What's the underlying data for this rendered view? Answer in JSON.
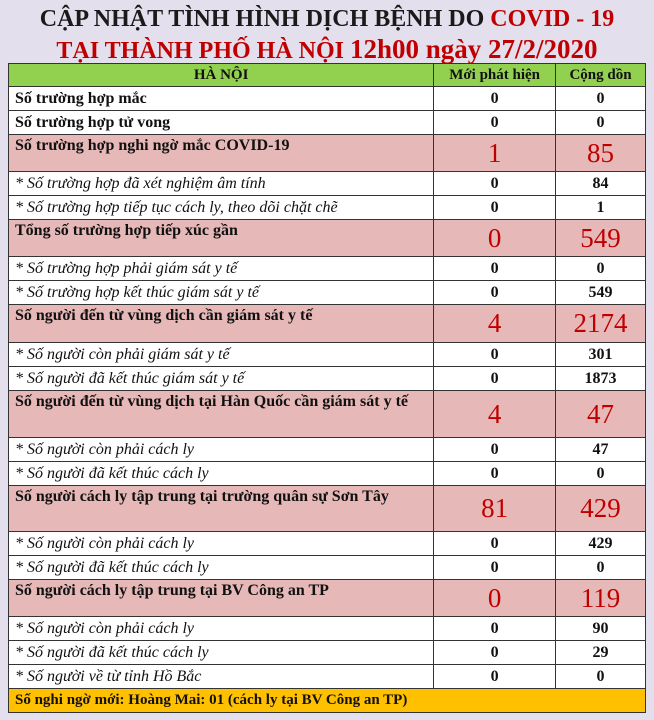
{
  "title": {
    "line1_main": "CẬP NHẬT TÌNH HÌNH DỊCH BỆNH DO ",
    "line1_red": "COVID - 19",
    "line2_main": "TẠI THÀNH PHỐ HÀ NỘI ",
    "line2_big": "12h00 ngày 27/2/2020"
  },
  "table": {
    "headers": [
      "HÀ NỘI",
      "Mới phát hiện",
      "Cộng dồn"
    ],
    "rows": [
      {
        "label": "Số trường hợp mắc",
        "new": "0",
        "total": "0",
        "type": "n"
      },
      {
        "label": "Số trường hợp tử vong",
        "new": "0",
        "total": "0",
        "type": "n"
      },
      {
        "label": "Số trường hợp nghi ngờ mắc COVID-19",
        "new": "1",
        "total": "85",
        "type": "h"
      },
      {
        "label": "* Số trường hợp đã xét nghiệm âm tính",
        "new": "0",
        "total": "84",
        "type": "sub"
      },
      {
        "label": "* Số trường hợp tiếp tục cách ly, theo dõi chặt chẽ",
        "new": "0",
        "total": "1",
        "type": "sub"
      },
      {
        "label": "Tổng số trường hợp tiếp xúc gần",
        "new": "0",
        "total": "549",
        "type": "h"
      },
      {
        "label": "* Số trường hợp phải giám sát y tế",
        "new": "0",
        "total": "0",
        "type": "sub"
      },
      {
        "label": "* Số trường hợp kết thúc giám sát y tế",
        "new": "0",
        "total": "549",
        "type": "sub"
      },
      {
        "label": "Số người đến từ vùng dịch cần giám sát y tế",
        "new": "4",
        "total": "2174",
        "type": "h"
      },
      {
        "label": "* Số người còn phải giám sát y tế",
        "new": "0",
        "total": "301",
        "type": "sub"
      },
      {
        "label": "* Số người đã kết thúc giám sát y tế",
        "new": "0",
        "total": "1873",
        "type": "sub"
      },
      {
        "label": "Số người đến từ vùng dịch tại Hàn Quốc cần giám sát y tế",
        "new": "4",
        "total": "47",
        "type": "h"
      },
      {
        "label": "* Số người còn phải cách ly",
        "new": "0",
        "total": "47",
        "type": "sub"
      },
      {
        "label": "* Số người đã kết thúc cách ly",
        "new": "0",
        "total": "0",
        "type": "sub"
      },
      {
        "label": "Số người cách ly tập trung tại trường quân sự Sơn Tây",
        "new": "81",
        "total": "429",
        "type": "h"
      },
      {
        "label": "* Số người còn phải cách ly",
        "new": "0",
        "total": "429",
        "type": "sub"
      },
      {
        "label": "* Số người đã kết thúc cách ly",
        "new": "0",
        "total": "0",
        "type": "sub"
      },
      {
        "label": "Số người cách ly tập trung tại BV Công an TP",
        "new": "0",
        "total": "119",
        "type": "h"
      },
      {
        "label": "* Số người còn phải cách ly",
        "new": "0",
        "total": "90",
        "type": "sub"
      },
      {
        "label": "* Số người đã kết thúc cách ly",
        "new": "0",
        "total": "29",
        "type": "sub"
      },
      {
        "label": "* Số người về từ tỉnh Hồ Bắc",
        "new": "0",
        "total": "0",
        "type": "sub"
      }
    ],
    "footer": "Số nghi ngờ mới: Hoàng Mai: 01 (cách ly tại BV Công an TP)"
  },
  "colors": {
    "header_bg": "#e4dfec",
    "highlight": "#e6b8b7",
    "green": "#92d050",
    "footer": "#ffc000",
    "red": "#c00000"
  }
}
